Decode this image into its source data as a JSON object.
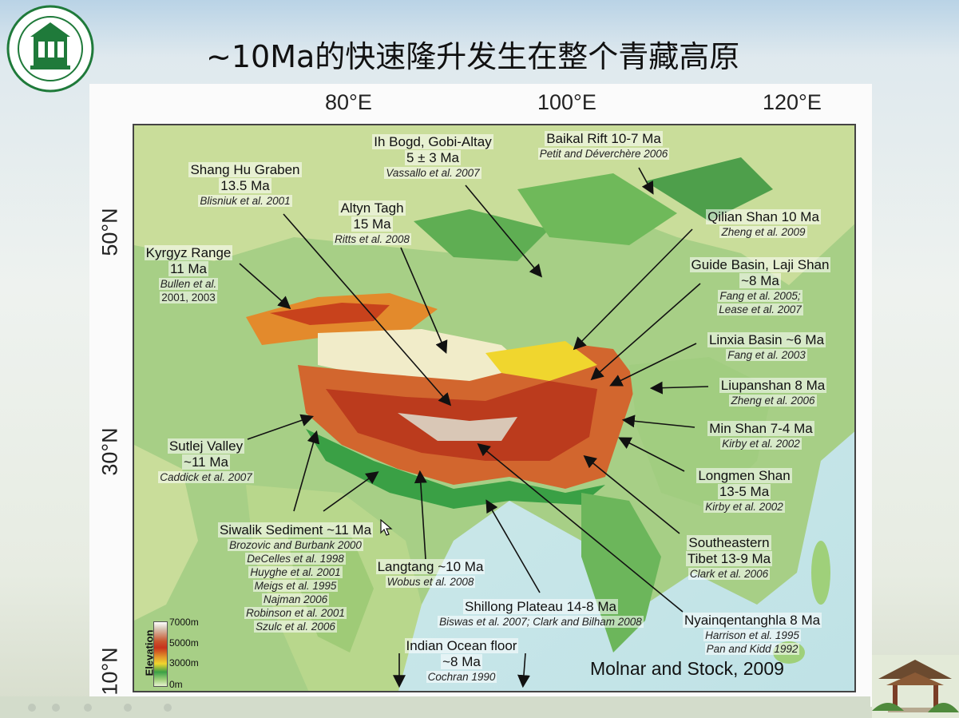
{
  "slide": {
    "title": "~10Ma的快速隆升发生在整个青藏高原",
    "credit": "Molnar and Stock, 2009"
  },
  "map_axes": {
    "lon_ticks": [
      "80°E",
      "100°E",
      "120°E"
    ],
    "lat_ticks": [
      "50°N",
      "30°N",
      "10°N"
    ]
  },
  "legend": {
    "title": "Elevation",
    "ticks": [
      "7000m",
      "5000m",
      "3000m",
      "0m"
    ]
  },
  "annotations": {
    "ih_bogd": {
      "place": "Ih Bogd, Gobi-Altay",
      "age": "5 ± 3 Ma",
      "ref": "Vassallo et al. 2007"
    },
    "baikal": {
      "place": "Baikal Rift 10-7 Ma",
      "ref": "Petit and Déverchère 2006"
    },
    "shang_hu": {
      "place": "Shang Hu Graben",
      "age": "13.5 Ma",
      "ref": "Blisniuk et al. 2001"
    },
    "altyn": {
      "place": "Altyn Tagh",
      "age": "15 Ma",
      "ref": "Ritts et al. 2008"
    },
    "qilian": {
      "place": "Qilian Shan 10 Ma",
      "ref": "Zheng et al. 2009"
    },
    "kyrgyz": {
      "place": "Kyrgyz Range",
      "age": "11 Ma",
      "ref1": "Bullen et al.",
      "ref2": "2001, 2003"
    },
    "guide": {
      "place": "Guide Basin, Laji Shan",
      "age": "~8 Ma",
      "ref1": "Fang et al. 2005;",
      "ref2": "Lease et al. 2007"
    },
    "linxia": {
      "place": "Linxia Basin ~6 Ma",
      "ref": "Fang et al. 2003"
    },
    "liupanshan": {
      "place": "Liupanshan 8 Ma",
      "ref": "Zheng et al. 2006"
    },
    "min_shan": {
      "place": "Min Shan 7-4 Ma",
      "ref": "Kirby et al. 2002"
    },
    "sutlej": {
      "place": "Sutlej Valley",
      "age": "~11 Ma",
      "ref": "Caddick et al. 2007"
    },
    "longmen": {
      "place": "Longmen Shan",
      "age": "13-5 Ma",
      "ref": "Kirby et al. 2002"
    },
    "siwalik": {
      "place": "Siwalik Sediment ~11 Ma",
      "refs": [
        "Brozovic and Burbank 2000",
        "DeCelles et al. 1998",
        "Huyghe et al. 2001",
        "Meigs et al. 1995",
        "Najman 2006",
        "Robinson et al. 2001",
        "Szulc et al. 2006"
      ]
    },
    "se_tibet": {
      "place": "Southeastern",
      "age": "Tibet 13-9 Ma",
      "ref": "Clark et al. 2006"
    },
    "langtang": {
      "place": "Langtang ~10 Ma",
      "ref": "Wobus et al. 2008"
    },
    "shillong": {
      "place": "Shillong Plateau 14-8 Ma",
      "ref": "Biswas et al. 2007; Clark and Bilham 2008"
    },
    "nyainqentanghla": {
      "place": "Nyainqentanghla 8 Ma",
      "ref1": "Harrison et al. 1995",
      "ref2": "Pan and Kidd 1992"
    },
    "indian_ocean": {
      "place": "Indian Ocean floor",
      "age": "~8 Ma",
      "ref": "Cochran 1990"
    }
  }
}
